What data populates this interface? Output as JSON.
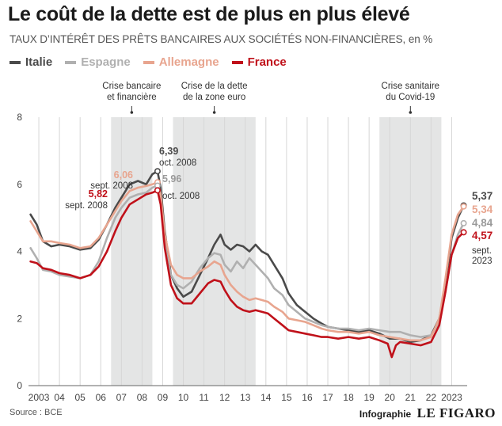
{
  "title": "Le coût de la dette est de plus en plus élevé",
  "subtitle": "TAUX D’INTÉRÊT DES PRÊTS BANCAIRES AUX SOCIÉTÉS NON-FINANCIÈRES, en %",
  "source": "Source : BCE",
  "credit": {
    "label": "Infographie",
    "brand": "LE FIGARO"
  },
  "chart_data": {
    "type": "line",
    "x_unit": "year",
    "xlim": [
      2002.5,
      2023.75
    ],
    "ylim": [
      0,
      8
    ],
    "yticks": [
      0,
      2,
      4,
      6,
      8
    ],
    "xticks": [
      {
        "x": 2003,
        "label": "2003"
      },
      {
        "x": 2004,
        "label": "04"
      },
      {
        "x": 2005,
        "label": "05"
      },
      {
        "x": 2006,
        "label": "06"
      },
      {
        "x": 2007,
        "label": "07"
      },
      {
        "x": 2008,
        "label": "08"
      },
      {
        "x": 2009,
        "label": "09"
      },
      {
        "x": 2010,
        "label": "10"
      },
      {
        "x": 2011,
        "label": "11"
      },
      {
        "x": 2012,
        "label": "12"
      },
      {
        "x": 2013,
        "label": "13"
      },
      {
        "x": 2014,
        "label": "14"
      },
      {
        "x": 2015,
        "label": "15"
      },
      {
        "x": 2016,
        "label": "16"
      },
      {
        "x": 2017,
        "label": "17"
      },
      {
        "x": 2018,
        "label": "18"
      },
      {
        "x": 2019,
        "label": "19"
      },
      {
        "x": 2020,
        "label": "20"
      },
      {
        "x": 2021,
        "label": "21"
      },
      {
        "x": 2022,
        "label": "22"
      },
      {
        "x": 2023,
        "label": "2023"
      }
    ],
    "grid": "vertical",
    "shaded_periods": [
      {
        "start": 2006.5,
        "end": 2008.5,
        "label": [
          "Crise bancaire",
          "et financière"
        ]
      },
      {
        "start": 2009.5,
        "end": 2013.5,
        "label": [
          "Crise de la dette",
          "de la zone euro"
        ]
      },
      {
        "start": 2019.5,
        "end": 2022.5,
        "label": [
          "Crise sanitaire",
          "du Covid-19"
        ]
      }
    ],
    "series": [
      {
        "name": "Italie",
        "color": "#4a4a4a",
        "points": [
          [
            2002.6,
            5.1
          ],
          [
            2002.9,
            4.8
          ],
          [
            2003.2,
            4.3
          ],
          [
            2003.6,
            4.15
          ],
          [
            2004.0,
            4.2
          ],
          [
            2004.5,
            4.15
          ],
          [
            2005.0,
            4.05
          ],
          [
            2005.5,
            4.1
          ],
          [
            2005.9,
            4.35
          ],
          [
            2006.3,
            4.8
          ],
          [
            2006.7,
            5.3
          ],
          [
            2007.0,
            5.6
          ],
          [
            2007.4,
            6.0
          ],
          [
            2007.8,
            6.1
          ],
          [
            2008.2,
            6.0
          ],
          [
            2008.5,
            6.3
          ],
          [
            2008.75,
            6.39
          ],
          [
            2008.9,
            5.9
          ],
          [
            2009.1,
            4.6
          ],
          [
            2009.4,
            3.3
          ],
          [
            2009.7,
            2.9
          ],
          [
            2010.0,
            2.65
          ],
          [
            2010.4,
            2.8
          ],
          [
            2010.8,
            3.3
          ],
          [
            2011.2,
            3.8
          ],
          [
            2011.5,
            4.2
          ],
          [
            2011.8,
            4.5
          ],
          [
            2012.0,
            4.2
          ],
          [
            2012.3,
            4.05
          ],
          [
            2012.6,
            4.2
          ],
          [
            2012.9,
            4.15
          ],
          [
            2013.2,
            4.0
          ],
          [
            2013.5,
            4.2
          ],
          [
            2013.8,
            4.0
          ],
          [
            2014.1,
            3.9
          ],
          [
            2014.4,
            3.6
          ],
          [
            2014.8,
            3.2
          ],
          [
            2015.1,
            2.75
          ],
          [
            2015.5,
            2.4
          ],
          [
            2015.9,
            2.2
          ],
          [
            2016.3,
            2.0
          ],
          [
            2016.7,
            1.85
          ],
          [
            2017.0,
            1.75
          ],
          [
            2017.5,
            1.7
          ],
          [
            2018.0,
            1.65
          ],
          [
            2018.5,
            1.6
          ],
          [
            2019.0,
            1.65
          ],
          [
            2019.5,
            1.55
          ],
          [
            2020.0,
            1.4
          ],
          [
            2020.5,
            1.4
          ],
          [
            2021.0,
            1.3
          ],
          [
            2021.5,
            1.35
          ],
          [
            2022.0,
            1.5
          ],
          [
            2022.4,
            2.0
          ],
          [
            2022.7,
            3.0
          ],
          [
            2023.0,
            4.4
          ],
          [
            2023.3,
            5.0
          ],
          [
            2023.58,
            5.37
          ]
        ],
        "end_label": "5,37"
      },
      {
        "name": "Espagne",
        "color": "#b0b0b0",
        "points": [
          [
            2002.6,
            4.1
          ],
          [
            2002.9,
            3.8
          ],
          [
            2003.2,
            3.45
          ],
          [
            2003.6,
            3.4
          ],
          [
            2004.0,
            3.3
          ],
          [
            2004.5,
            3.25
          ],
          [
            2005.0,
            3.2
          ],
          [
            2005.5,
            3.3
          ],
          [
            2005.9,
            3.7
          ],
          [
            2006.3,
            4.4
          ],
          [
            2006.7,
            5.0
          ],
          [
            2007.0,
            5.3
          ],
          [
            2007.4,
            5.6
          ],
          [
            2007.8,
            5.7
          ],
          [
            2008.2,
            5.75
          ],
          [
            2008.5,
            5.9
          ],
          [
            2008.75,
            5.96
          ],
          [
            2008.9,
            5.5
          ],
          [
            2009.1,
            4.2
          ],
          [
            2009.4,
            3.3
          ],
          [
            2009.7,
            3.0
          ],
          [
            2010.0,
            2.9
          ],
          [
            2010.4,
            3.1
          ],
          [
            2010.8,
            3.5
          ],
          [
            2011.2,
            3.8
          ],
          [
            2011.5,
            3.95
          ],
          [
            2011.8,
            3.9
          ],
          [
            2012.0,
            3.6
          ],
          [
            2012.3,
            3.4
          ],
          [
            2012.6,
            3.7
          ],
          [
            2012.9,
            3.5
          ],
          [
            2013.2,
            3.8
          ],
          [
            2013.5,
            3.6
          ],
          [
            2013.8,
            3.4
          ],
          [
            2014.1,
            3.2
          ],
          [
            2014.4,
            2.9
          ],
          [
            2014.8,
            2.7
          ],
          [
            2015.1,
            2.4
          ],
          [
            2015.5,
            2.2
          ],
          [
            2015.9,
            2.0
          ],
          [
            2016.3,
            1.9
          ],
          [
            2016.7,
            1.8
          ],
          [
            2017.0,
            1.75
          ],
          [
            2017.5,
            1.7
          ],
          [
            2018.0,
            1.7
          ],
          [
            2018.5,
            1.65
          ],
          [
            2019.0,
            1.7
          ],
          [
            2019.5,
            1.65
          ],
          [
            2020.0,
            1.6
          ],
          [
            2020.5,
            1.6
          ],
          [
            2021.0,
            1.5
          ],
          [
            2021.5,
            1.45
          ],
          [
            2022.0,
            1.5
          ],
          [
            2022.4,
            1.9
          ],
          [
            2022.7,
            2.8
          ],
          [
            2023.0,
            3.9
          ],
          [
            2023.3,
            4.5
          ],
          [
            2023.58,
            4.84
          ]
        ],
        "end_label": "4,84"
      },
      {
        "name": "Allemagne",
        "color": "#e8a58f",
        "points": [
          [
            2002.6,
            4.9
          ],
          [
            2002.9,
            4.6
          ],
          [
            2003.2,
            4.3
          ],
          [
            2003.6,
            4.3
          ],
          [
            2004.0,
            4.25
          ],
          [
            2004.5,
            4.2
          ],
          [
            2005.0,
            4.1
          ],
          [
            2005.5,
            4.15
          ],
          [
            2005.9,
            4.4
          ],
          [
            2006.3,
            4.8
          ],
          [
            2006.7,
            5.2
          ],
          [
            2007.0,
            5.5
          ],
          [
            2007.4,
            5.8
          ],
          [
            2007.8,
            5.9
          ],
          [
            2008.2,
            5.95
          ],
          [
            2008.5,
            6.0
          ],
          [
            2008.75,
            6.06
          ],
          [
            2008.9,
            5.7
          ],
          [
            2009.1,
            4.5
          ],
          [
            2009.4,
            3.6
          ],
          [
            2009.7,
            3.3
          ],
          [
            2010.0,
            3.2
          ],
          [
            2010.4,
            3.2
          ],
          [
            2010.8,
            3.4
          ],
          [
            2011.2,
            3.55
          ],
          [
            2011.5,
            3.7
          ],
          [
            2011.8,
            3.6
          ],
          [
            2012.0,
            3.3
          ],
          [
            2012.3,
            3.0
          ],
          [
            2012.6,
            2.8
          ],
          [
            2012.9,
            2.65
          ],
          [
            2013.2,
            2.55
          ],
          [
            2013.5,
            2.6
          ],
          [
            2013.8,
            2.55
          ],
          [
            2014.1,
            2.5
          ],
          [
            2014.4,
            2.35
          ],
          [
            2014.8,
            2.2
          ],
          [
            2015.1,
            2.0
          ],
          [
            2015.5,
            1.95
          ],
          [
            2015.9,
            1.9
          ],
          [
            2016.3,
            1.8
          ],
          [
            2016.7,
            1.7
          ],
          [
            2017.0,
            1.65
          ],
          [
            2017.5,
            1.6
          ],
          [
            2018.0,
            1.6
          ],
          [
            2018.5,
            1.55
          ],
          [
            2019.0,
            1.6
          ],
          [
            2019.5,
            1.5
          ],
          [
            2020.0,
            1.45
          ],
          [
            2020.5,
            1.4
          ],
          [
            2021.0,
            1.35
          ],
          [
            2021.5,
            1.35
          ],
          [
            2022.0,
            1.45
          ],
          [
            2022.4,
            2.0
          ],
          [
            2022.7,
            3.2
          ],
          [
            2023.0,
            4.5
          ],
          [
            2023.3,
            5.1
          ],
          [
            2023.58,
            5.34
          ]
        ],
        "end_label": "5,34"
      },
      {
        "name": "France",
        "color": "#c0111a",
        "points": [
          [
            2002.6,
            3.7
          ],
          [
            2002.9,
            3.65
          ],
          [
            2003.2,
            3.5
          ],
          [
            2003.6,
            3.45
          ],
          [
            2004.0,
            3.35
          ],
          [
            2004.5,
            3.3
          ],
          [
            2005.0,
            3.2
          ],
          [
            2005.5,
            3.3
          ],
          [
            2005.9,
            3.55
          ],
          [
            2006.3,
            4.0
          ],
          [
            2006.7,
            4.6
          ],
          [
            2007.0,
            5.0
          ],
          [
            2007.4,
            5.4
          ],
          [
            2007.8,
            5.55
          ],
          [
            2008.2,
            5.7
          ],
          [
            2008.5,
            5.75
          ],
          [
            2008.75,
            5.82
          ],
          [
            2008.9,
            5.4
          ],
          [
            2009.1,
            4.1
          ],
          [
            2009.4,
            3.0
          ],
          [
            2009.7,
            2.6
          ],
          [
            2010.0,
            2.45
          ],
          [
            2010.4,
            2.45
          ],
          [
            2010.8,
            2.75
          ],
          [
            2011.2,
            3.05
          ],
          [
            2011.5,
            3.15
          ],
          [
            2011.8,
            3.1
          ],
          [
            2012.0,
            2.85
          ],
          [
            2012.3,
            2.55
          ],
          [
            2012.6,
            2.35
          ],
          [
            2012.9,
            2.25
          ],
          [
            2013.2,
            2.2
          ],
          [
            2013.5,
            2.25
          ],
          [
            2013.8,
            2.2
          ],
          [
            2014.1,
            2.15
          ],
          [
            2014.4,
            2.0
          ],
          [
            2014.8,
            1.8
          ],
          [
            2015.1,
            1.65
          ],
          [
            2015.5,
            1.6
          ],
          [
            2015.9,
            1.55
          ],
          [
            2016.3,
            1.5
          ],
          [
            2016.7,
            1.45
          ],
          [
            2017.0,
            1.45
          ],
          [
            2017.5,
            1.4
          ],
          [
            2018.0,
            1.45
          ],
          [
            2018.5,
            1.4
          ],
          [
            2019.0,
            1.45
          ],
          [
            2019.5,
            1.35
          ],
          [
            2019.9,
            1.25
          ],
          [
            2020.1,
            0.85
          ],
          [
            2020.3,
            1.2
          ],
          [
            2020.5,
            1.3
          ],
          [
            2021.0,
            1.25
          ],
          [
            2021.5,
            1.2
          ],
          [
            2022.0,
            1.3
          ],
          [
            2022.4,
            1.8
          ],
          [
            2022.7,
            2.8
          ],
          [
            2023.0,
            3.9
          ],
          [
            2023.3,
            4.4
          ],
          [
            2023.58,
            4.57
          ]
        ],
        "end_label": "4,57"
      }
    ],
    "annotations": {
      "peak_2008": [
        {
          "series": "Italie",
          "value": "6,39",
          "date": "oct. 2008"
        },
        {
          "series": "Allemagne",
          "value": "6,06",
          "date": "sept. 2008"
        },
        {
          "series": "Espagne",
          "value": "5,96",
          "date": "oct. 2008"
        },
        {
          "series": "France",
          "value": "5,82",
          "date": "sept. 2008"
        }
      ],
      "latest_date": [
        "sept.",
        "2023"
      ]
    }
  }
}
